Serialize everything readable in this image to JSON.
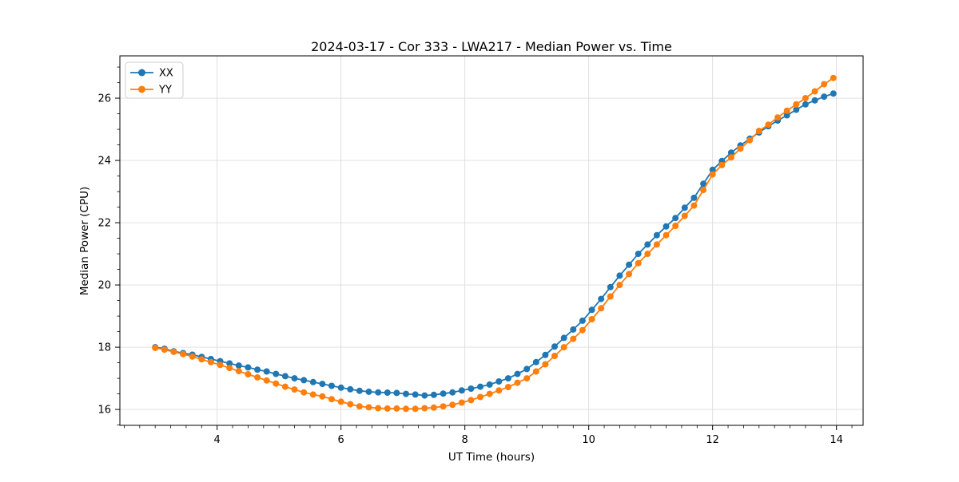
{
  "title": "2024-03-17 - Cor 333 - LWA217 - Median Power vs. Time",
  "axes": {
    "xlabel": "UT Time (hours)",
    "ylabel": "Median Power (CPU)",
    "x_ticks": [
      4,
      6,
      8,
      10,
      12,
      14
    ],
    "y_ticks": [
      16,
      18,
      20,
      22,
      24,
      26
    ],
    "x_minor_step": 0.25,
    "y_minor_step": 0.5,
    "xlim": [
      2.43,
      14.43
    ],
    "ylim": [
      15.49,
      27.36
    ]
  },
  "legend": {
    "position": "upper left",
    "items": [
      {
        "label": "XX",
        "color": "#1f77b4"
      },
      {
        "label": "YY",
        "color": "#ff7f0e"
      }
    ]
  },
  "style": {
    "grid_color": "#dcdcdc",
    "spine_color": "#000000",
    "marker_radius": 4,
    "line_width": 1.8
  },
  "chart_data": {
    "type": "line",
    "title": "2024-03-17 - Cor 333 - LWA217 - Median Power vs. Time",
    "xlabel": "UT Time (hours)",
    "ylabel": "Median Power (CPU)",
    "xlim": [
      2.43,
      14.43
    ],
    "ylim": [
      15.49,
      27.36
    ],
    "grid": true,
    "legend_position": "upper left",
    "x": [
      3.0,
      3.15,
      3.3,
      3.45,
      3.6,
      3.75,
      3.9,
      4.05,
      4.2,
      4.35,
      4.5,
      4.65,
      4.8,
      4.95,
      5.1,
      5.25,
      5.4,
      5.55,
      5.7,
      5.85,
      6.0,
      6.15,
      6.3,
      6.45,
      6.6,
      6.75,
      6.9,
      7.05,
      7.2,
      7.35,
      7.5,
      7.65,
      7.8,
      7.95,
      8.1,
      8.25,
      8.4,
      8.55,
      8.7,
      8.85,
      9.0,
      9.15,
      9.3,
      9.45,
      9.6,
      9.75,
      9.9,
      10.05,
      10.2,
      10.35,
      10.5,
      10.65,
      10.8,
      10.95,
      11.1,
      11.25,
      11.4,
      11.55,
      11.7,
      11.85,
      12.0,
      12.15,
      12.3,
      12.45,
      12.6,
      12.75,
      12.9,
      13.05,
      13.2,
      13.35,
      13.5,
      13.65,
      13.8,
      13.95
    ],
    "series": [
      {
        "name": "XX",
        "color": "#1f77b4",
        "values": [
          18.0,
          17.95,
          17.87,
          17.81,
          17.76,
          17.69,
          17.62,
          17.55,
          17.48,
          17.41,
          17.35,
          17.28,
          17.22,
          17.14,
          17.07,
          17.0,
          16.94,
          16.88,
          16.82,
          16.76,
          16.7,
          16.65,
          16.6,
          16.57,
          16.55,
          16.54,
          16.53,
          16.5,
          16.48,
          16.45,
          16.47,
          16.51,
          16.55,
          16.61,
          16.67,
          16.73,
          16.8,
          16.9,
          17.0,
          17.14,
          17.3,
          17.52,
          17.75,
          18.02,
          18.3,
          18.57,
          18.85,
          19.2,
          19.55,
          19.93,
          20.3,
          20.65,
          21.0,
          21.3,
          21.6,
          21.88,
          22.15,
          22.48,
          22.8,
          23.25,
          23.7,
          23.98,
          24.25,
          24.48,
          24.7,
          24.9,
          25.1,
          25.28,
          25.45,
          25.63,
          25.8,
          25.93,
          26.05,
          26.15
        ]
      },
      {
        "name": "YY",
        "color": "#ff7f0e",
        "values": [
          17.98,
          17.92,
          17.85,
          17.78,
          17.7,
          17.61,
          17.52,
          17.43,
          17.33,
          17.23,
          17.13,
          17.03,
          16.93,
          16.83,
          16.73,
          16.64,
          16.55,
          16.48,
          16.42,
          16.33,
          16.25,
          16.17,
          16.1,
          16.07,
          16.04,
          16.03,
          16.03,
          16.02,
          16.02,
          16.04,
          16.06,
          16.1,
          16.15,
          16.22,
          16.3,
          16.4,
          16.5,
          16.61,
          16.72,
          16.86,
          17.0,
          17.22,
          17.45,
          17.72,
          18.0,
          18.27,
          18.55,
          18.9,
          19.25,
          19.63,
          20.0,
          20.35,
          20.7,
          21.0,
          21.3,
          21.6,
          21.9,
          22.22,
          22.55,
          23.05,
          23.55,
          23.85,
          24.1,
          24.38,
          24.65,
          24.95,
          25.15,
          25.38,
          25.6,
          25.8,
          26.0,
          26.22,
          26.45,
          26.65
        ]
      }
    ]
  }
}
